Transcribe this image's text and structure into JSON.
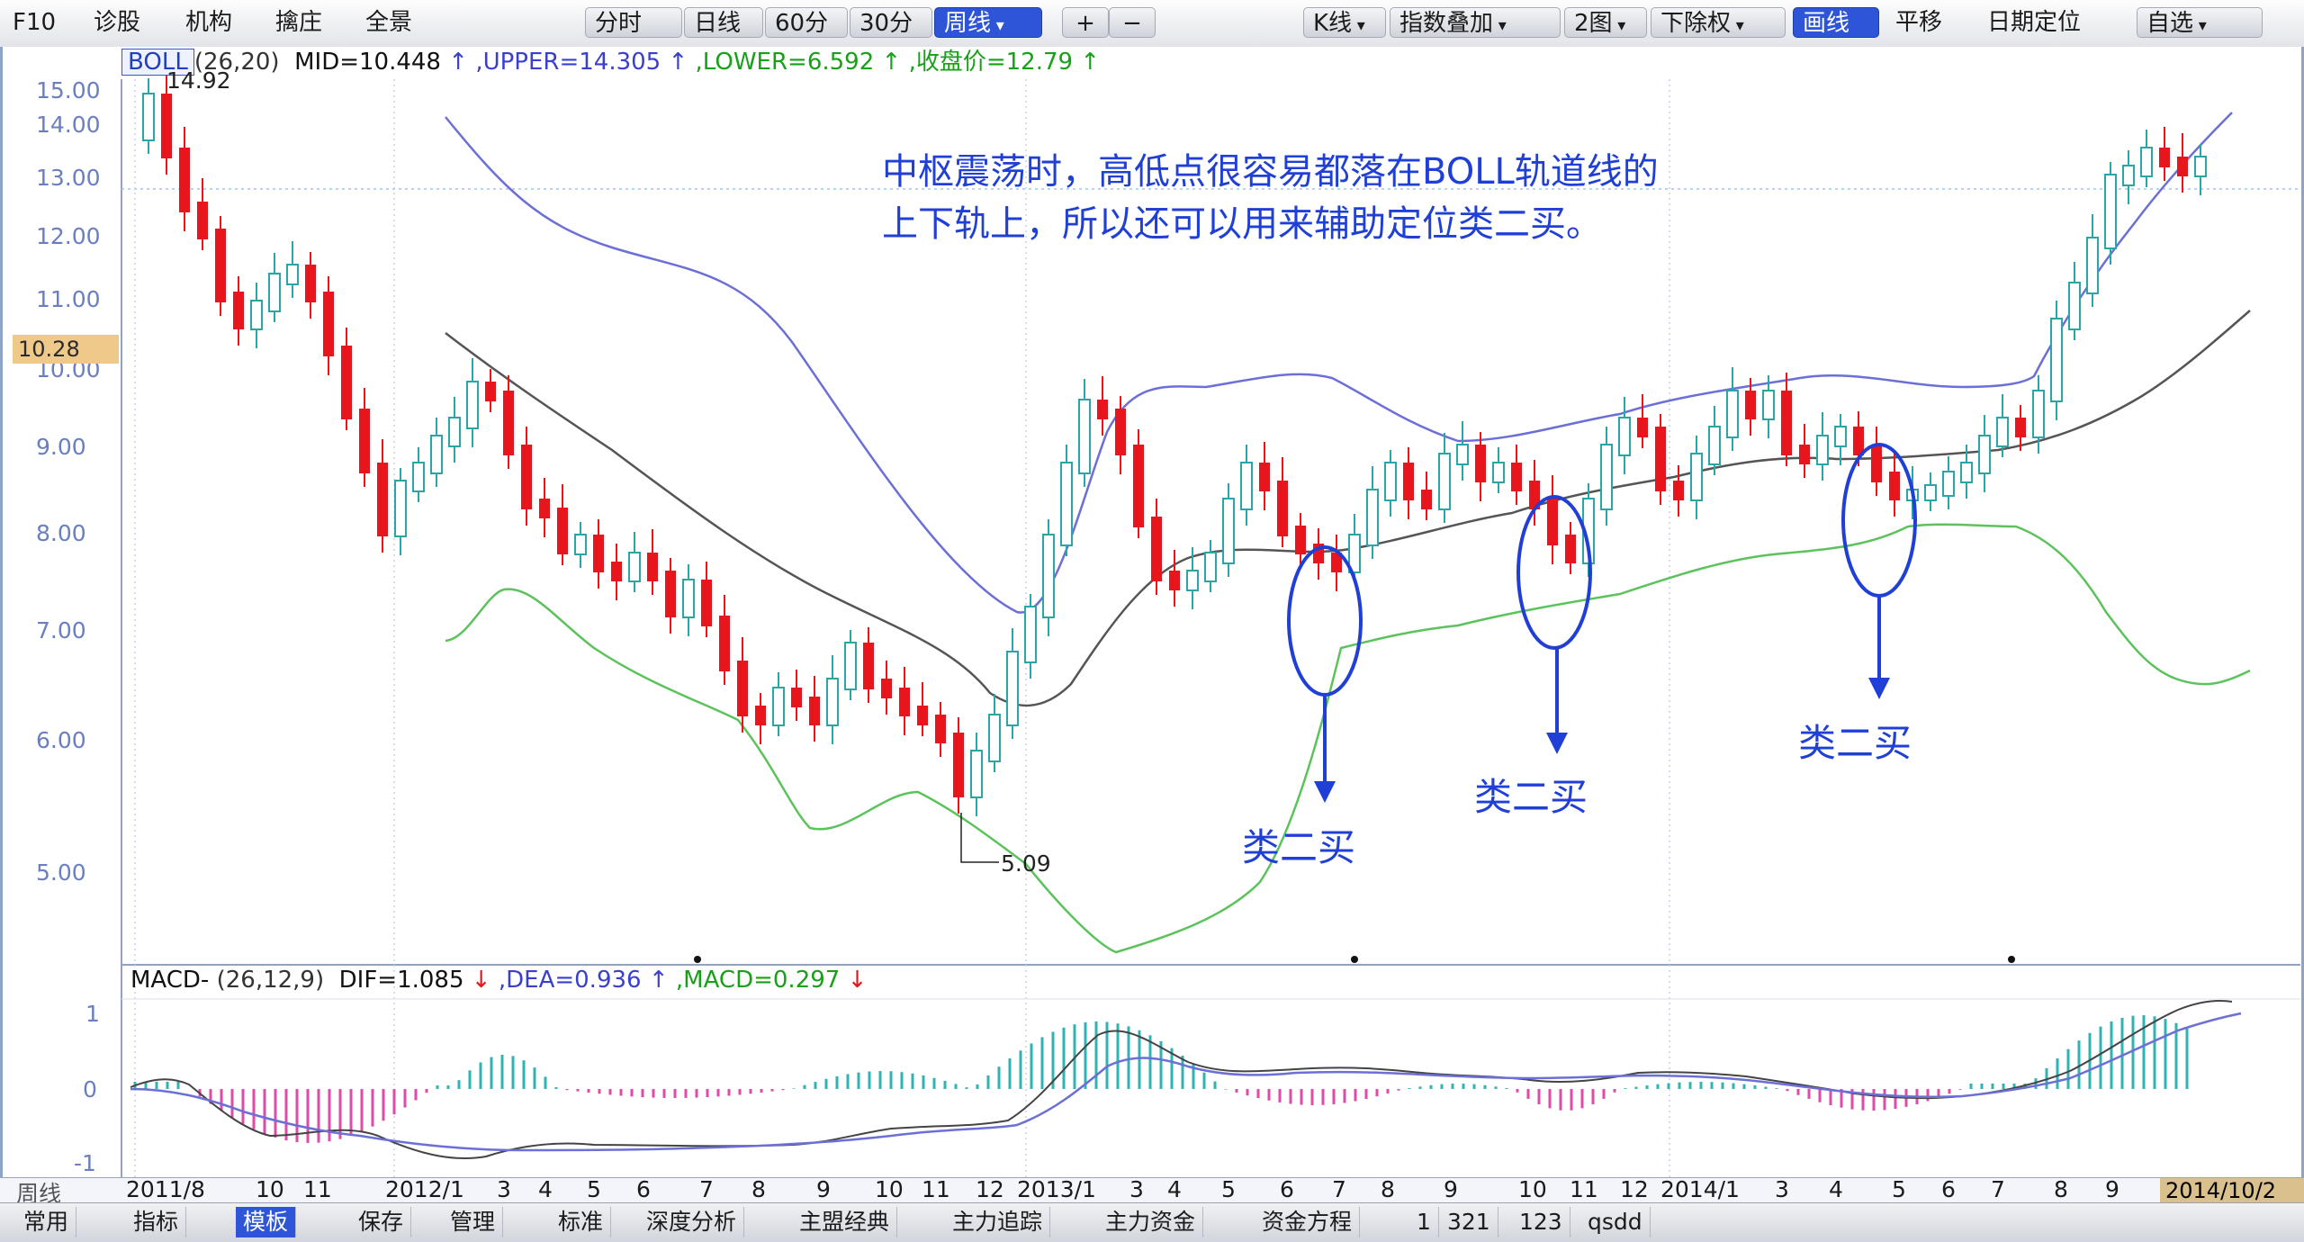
{
  "toolbar": {
    "left_items": [
      "F10",
      "诊股",
      "机构",
      "擒庄",
      "全景"
    ],
    "period_tabs": [
      "分时",
      "日线",
      "60分",
      "30分",
      "周线"
    ],
    "active_period": "周线",
    "zoom_in": "+",
    "zoom_out": "−",
    "right_items": [
      "K线",
      "指数叠加",
      "2图",
      "下除权",
      "画线",
      "平移",
      "日期定位",
      "自选"
    ],
    "active_right": "画线"
  },
  "boll_header": {
    "indicator": "BOLL",
    "params": "(26,20)",
    "mid": "MID=10.448",
    "upper": ",UPPER=14.305",
    "lower": ",LOWER=6.592",
    "close": ",收盘价=12.79",
    "arrow": "↑",
    "colors": {
      "mid": "#111111",
      "upper": "#3a3fd0",
      "lower": "#18a018",
      "close": "#18a018"
    }
  },
  "price_axis": [
    "15.00",
    "14.00",
    "13.00",
    "12.00",
    "11.00",
    "10.00",
    "9.00",
    "8.00",
    "7.00",
    "6.00",
    "5.00"
  ],
  "current_price": "10.28",
  "markers": {
    "high": "14.92",
    "low": "5.09"
  },
  "annotation": {
    "line1": "中枢震荡时，高低点很容易都落在BOLL轨道线的",
    "line2": "上下轨上，所以还可以用来辅助定位类二买。"
  },
  "buy_labels": [
    "类二买",
    "类二买",
    "类二买"
  ],
  "macd_header": {
    "indicator": "MACD-",
    "params": "(26,12,9)",
    "dif": "DIF=1.085",
    "dea": ",DEA=0.936",
    "macd": ",MACD=0.297",
    "dif_arrow": "↓",
    "dea_arrow": "↑",
    "macd_arrow": "↓"
  },
  "macd_axis": [
    "1",
    "0",
    "-1"
  ],
  "date_axis": {
    "period": "周线",
    "labels": [
      "2011/8",
      "10",
      "11",
      "2012/1",
      "3",
      "4",
      "5",
      "6",
      "7",
      "8",
      "9",
      "10",
      "11",
      "12",
      "2013/1",
      "3",
      "4",
      "5",
      "6",
      "7",
      "8",
      "9",
      "10",
      "11",
      "12",
      "2014/1",
      "3",
      "4",
      "5",
      "6",
      "7",
      "8",
      "9"
    ],
    "end_label": "2014/10/2"
  },
  "bottom_bar": [
    "常用",
    "指标",
    "模板",
    "保存",
    "管理",
    "标准",
    "深度分析",
    "主盟经典",
    "主力追踪",
    "主力资金",
    "资金方程",
    "1",
    "321",
    "123",
    "qsdd"
  ],
  "colors": {
    "up_candle": "#2aa6a8",
    "down_candle": "#e8161c",
    "upper_band": "#6b6fd6",
    "mid_band": "#555555",
    "lower_band": "#5cc25c",
    "annotation": "#1f3fd6",
    "macd_pos": "#2fb3b3",
    "macd_neg": "#e04aa8"
  }
}
